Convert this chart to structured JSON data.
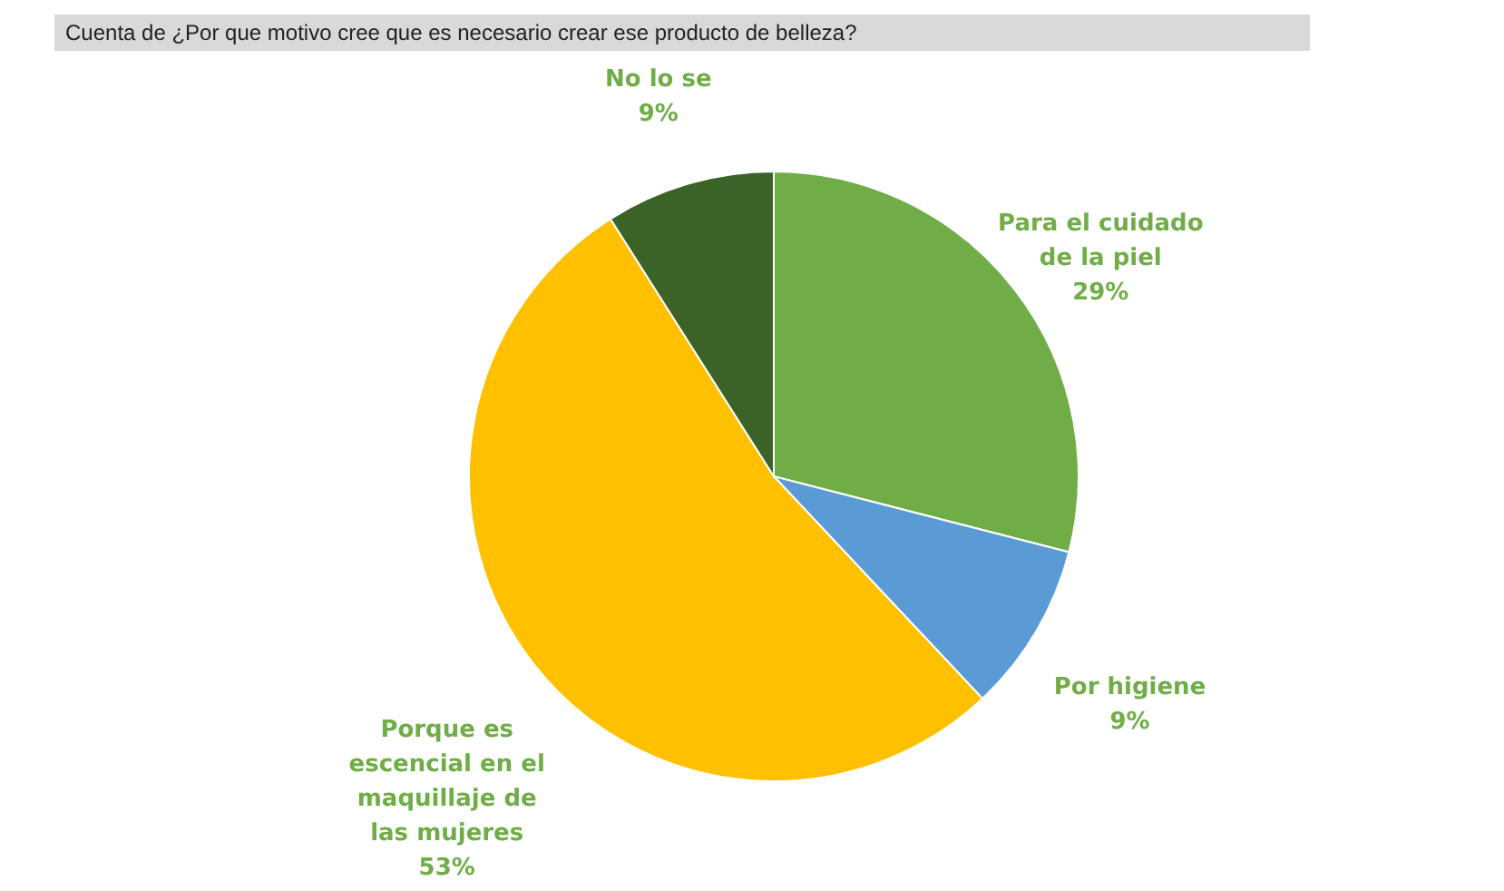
{
  "chart_data": {
    "type": "pie",
    "title": "Cuenta de ¿Por que motivo cree que es necesario crear ese producto de belleza?",
    "categories": [
      "Para el cuidado de la piel",
      "Por higiene",
      "Porque es escencial en el maquillaje de las mujeres",
      "No lo se"
    ],
    "values": [
      29,
      9,
      53,
      9
    ],
    "colors": [
      "#70ad47",
      "#5b9bd5",
      "#ffc000",
      "#3b6328"
    ],
    "value_labels": [
      "29%",
      "9%",
      "53%",
      "9%"
    ]
  }
}
